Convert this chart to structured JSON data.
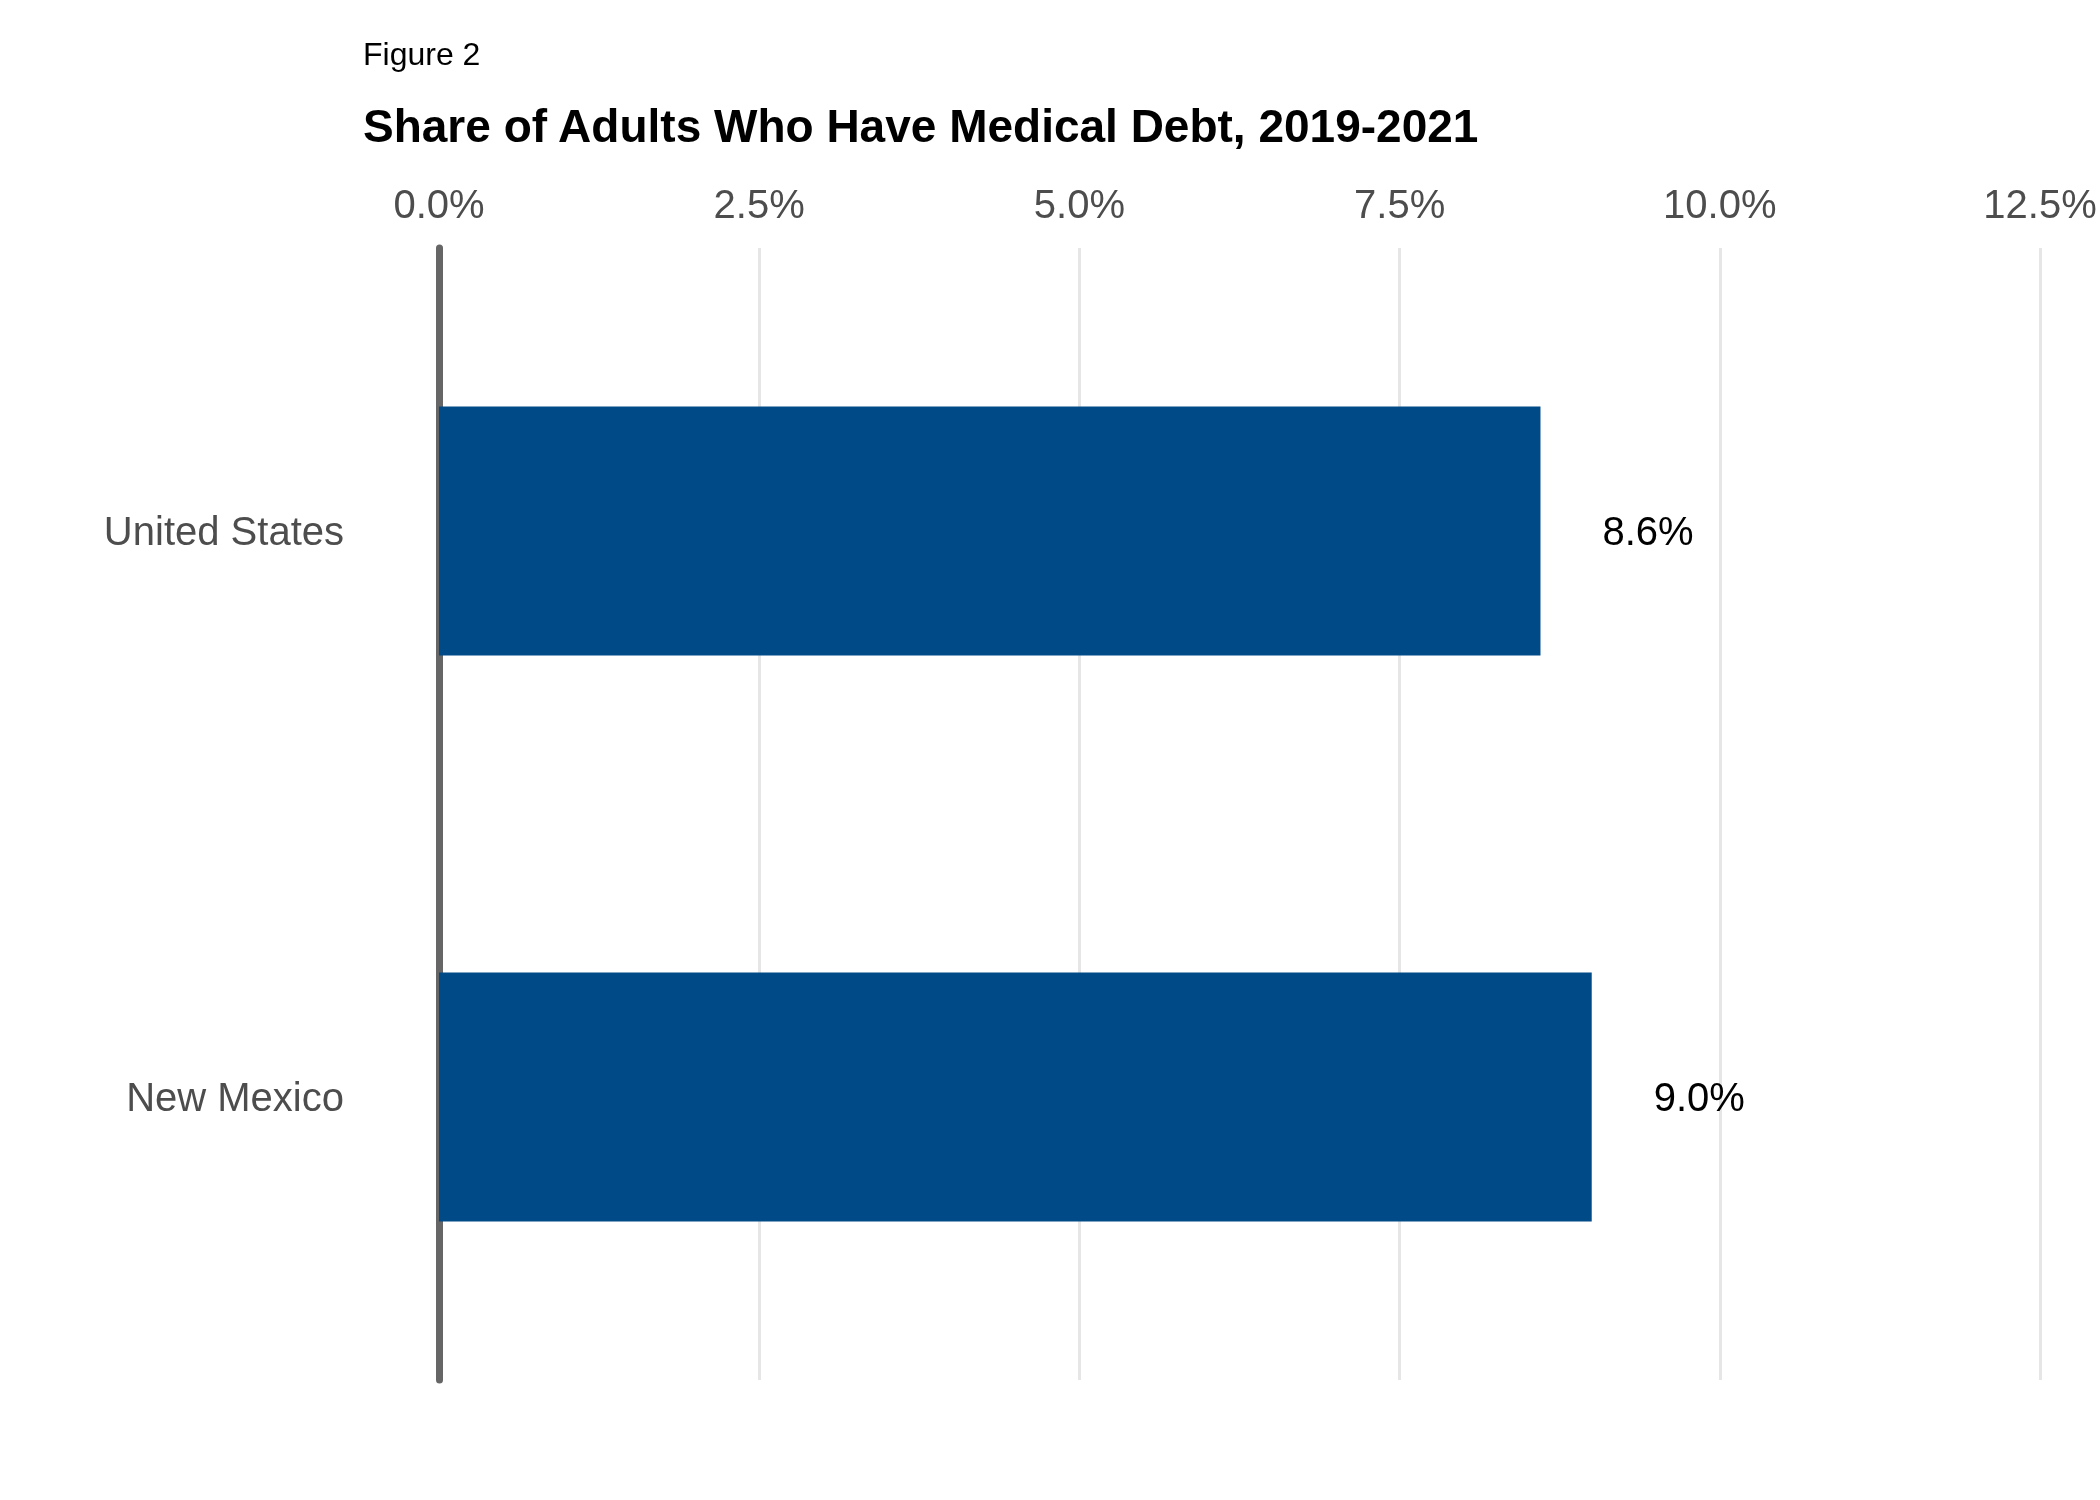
{
  "chart_data": {
    "type": "bar",
    "orientation": "horizontal",
    "title": "Share of Adults Who Have Medical Debt, 2019-2021",
    "annotations": [
      "Figure 2"
    ],
    "categories": [
      "United States",
      "New Mexico"
    ],
    "values": [
      8.6,
      9.0
    ],
    "value_labels": [
      "8.6%",
      "9.0%"
    ],
    "color": "#004a87",
    "xlim": [
      0,
      12.5
    ],
    "xticks": [
      {
        "value": 0,
        "label": "0.0%"
      },
      {
        "value": 2.5,
        "label": "2.5%"
      },
      {
        "value": 5,
        "label": "5.0%"
      },
      {
        "value": 7.5,
        "label": "7.5%"
      },
      {
        "value": 10,
        "label": "10.0%"
      },
      {
        "value": 12.5,
        "label": "12.5%"
      }
    ],
    "grid": "x"
  }
}
